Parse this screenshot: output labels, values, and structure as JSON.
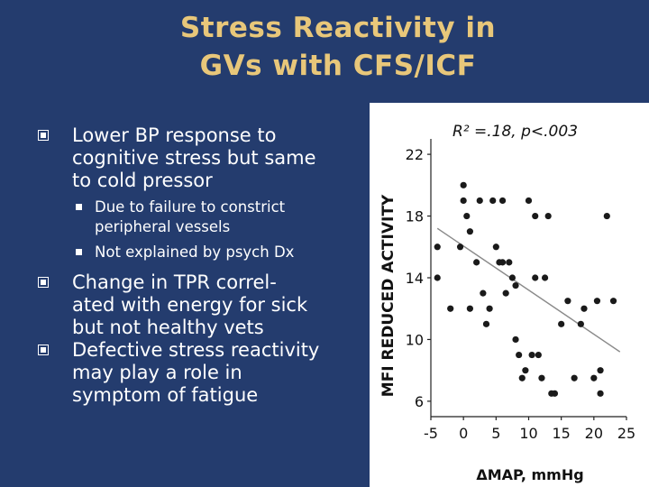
{
  "slide": {
    "title_line1": "Stress Reactivity in",
    "title_line2": "GVs with CFS/ICF",
    "bullets": [
      {
        "text_lines": [
          "Lower BP response to",
          "cognitive stress but same",
          "to cold pressor"
        ],
        "sub": [
          {
            "text_lines": [
              "Due to failure to constrict",
              "peripheral vessels"
            ]
          },
          {
            "text_lines": [
              "Not explained by psych Dx"
            ]
          }
        ]
      },
      {
        "text_lines": [
          "Change in TPR correl-",
          "ated with energy for sick",
          "but not healthy vets"
        ],
        "sub": []
      },
      {
        "text_lines": [
          "Defective stress reactivity",
          "may play a role in",
          "symptom of  fatigue"
        ],
        "sub": []
      }
    ]
  },
  "chart_data": {
    "type": "scatter",
    "annotation": "R² =.18, p<.003",
    "xlabel": "ΔMAP, mmHg",
    "ylabel": "MFI REDUCED ACTIVITY",
    "xlim": [
      -5,
      25
    ],
    "ylim": [
      5,
      23
    ],
    "xticks": [
      "-5",
      "0",
      "5",
      "10",
      "15",
      "20",
      "25"
    ],
    "xtick_values": [
      -5,
      0,
      5,
      10,
      15,
      20,
      25
    ],
    "yticks": [
      "6",
      "10",
      "14",
      "18",
      "22"
    ],
    "ytick_values": [
      6,
      10,
      14,
      18,
      22
    ],
    "points": [
      [
        -4,
        16
      ],
      [
        -4,
        14
      ],
      [
        -2,
        12
      ],
      [
        -0.5,
        16
      ],
      [
        0,
        19
      ],
      [
        0,
        20
      ],
      [
        0.5,
        18
      ],
      [
        1,
        17
      ],
      [
        1,
        12
      ],
      [
        2,
        15
      ],
      [
        2.5,
        19
      ],
      [
        3,
        13
      ],
      [
        3.5,
        11
      ],
      [
        4,
        12
      ],
      [
        4.5,
        19
      ],
      [
        5,
        16
      ],
      [
        5.5,
        15
      ],
      [
        6,
        15
      ],
      [
        6,
        19
      ],
      [
        6.5,
        13
      ],
      [
        7,
        15
      ],
      [
        7.5,
        14
      ],
      [
        8,
        13.5
      ],
      [
        8,
        10
      ],
      [
        8.5,
        9
      ],
      [
        9,
        7.5
      ],
      [
        9.5,
        8
      ],
      [
        10,
        19
      ],
      [
        10.5,
        9
      ],
      [
        11,
        14
      ],
      [
        11,
        18
      ],
      [
        11.5,
        9
      ],
      [
        12,
        7.5
      ],
      [
        12.5,
        14
      ],
      [
        13,
        18
      ],
      [
        13.5,
        6.5
      ],
      [
        14,
        6.5
      ],
      [
        15,
        11
      ],
      [
        16,
        12.5
      ],
      [
        17,
        7.5
      ],
      [
        18,
        11
      ],
      [
        18.5,
        12
      ],
      [
        20,
        7.5
      ],
      [
        20.5,
        12.5
      ],
      [
        21,
        8
      ],
      [
        21,
        6.5
      ],
      [
        22,
        18
      ],
      [
        23,
        12.5
      ]
    ],
    "trendline": {
      "x": [
        -4,
        24
      ],
      "y": [
        17.2,
        9.2
      ]
    },
    "marker_color": "#1a1a1a",
    "trend_color": "#8a8a8a"
  }
}
